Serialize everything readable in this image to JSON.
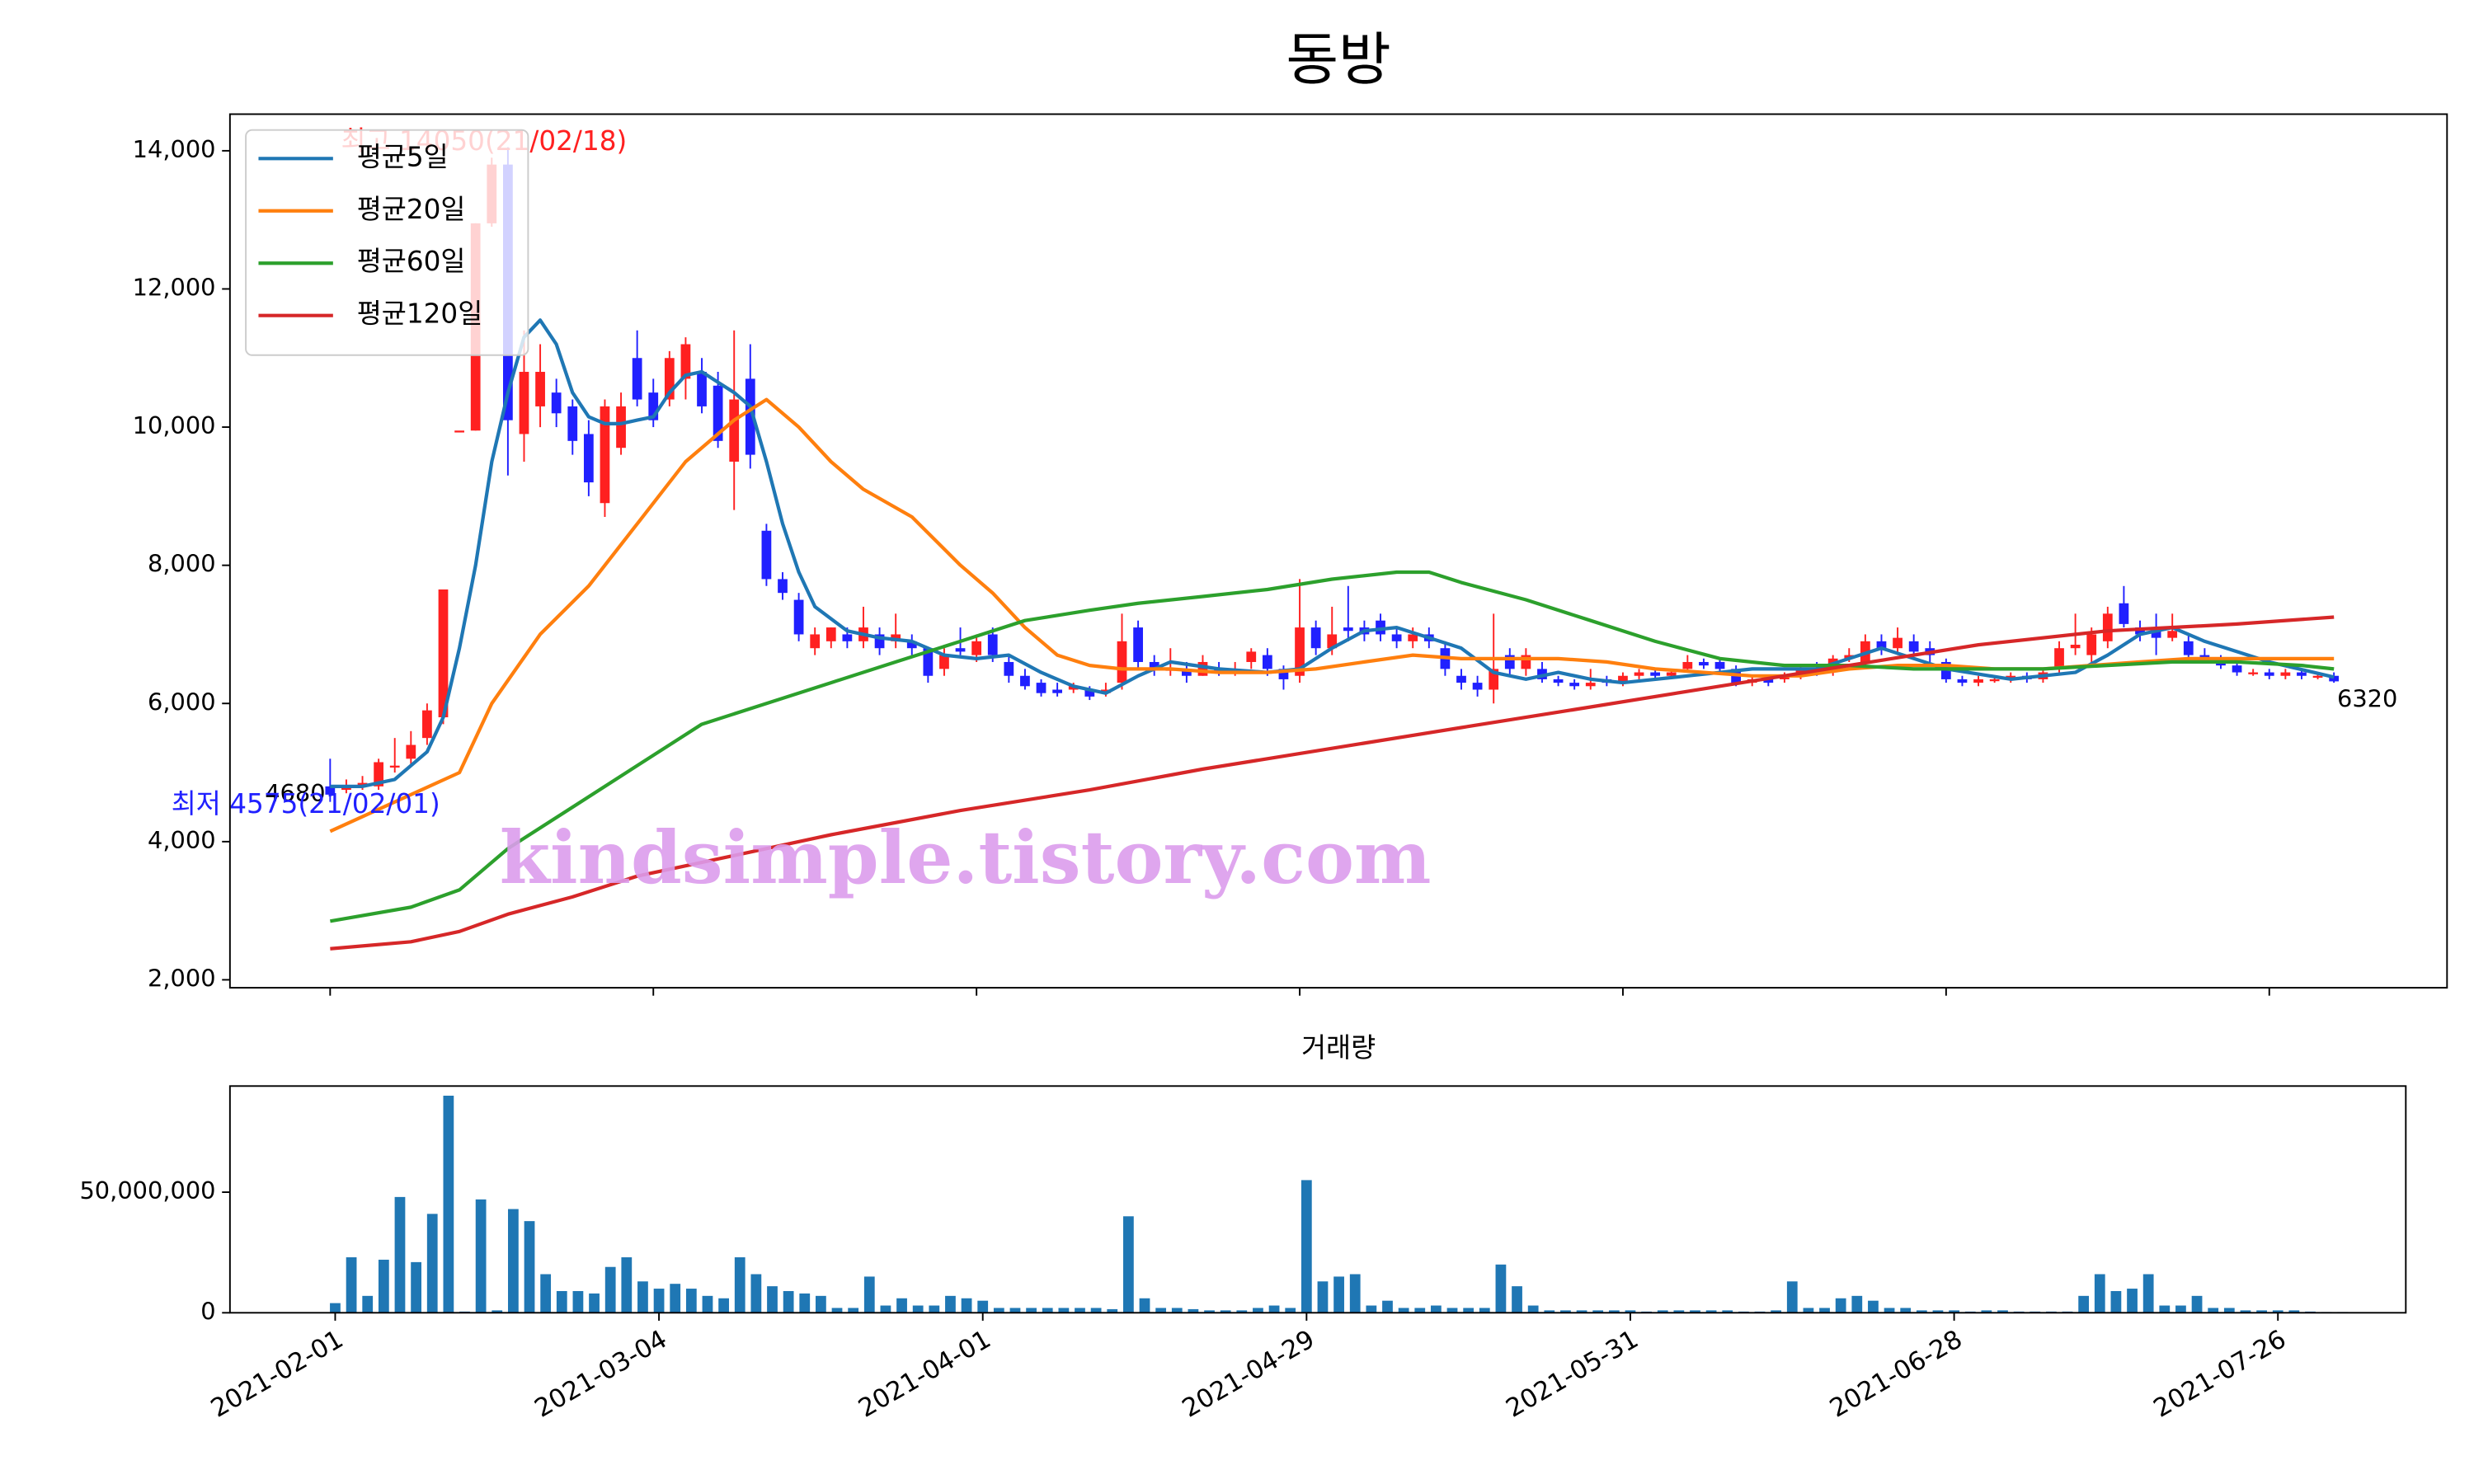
{
  "chart_data": [
    {
      "type": "candlestick",
      "title": "동방",
      "high_label": "최고 14050(21/02/18)",
      "low_label": "최저 4575(21/02/01)",
      "first_label": "4680",
      "last_label": "6320",
      "watermark": "kindsimple.tistory.com",
      "up_color": "#ff2020",
      "down_color": "#2020ff",
      "open": [
        4800,
        4750,
        4800,
        4800,
        5100,
        5200,
        5500,
        5800,
        9950,
        9950,
        12950,
        13800,
        9900,
        10300,
        10500,
        10300,
        9900,
        8900,
        9700,
        11000,
        10500,
        10400,
        10700,
        10800,
        10600,
        9500,
        10700,
        8500,
        7800,
        7500,
        6800,
        6900,
        7000,
        6900,
        7000,
        6900,
        6900,
        6800,
        6500,
        6800,
        6700,
        7000,
        6600,
        6400,
        6300,
        6200,
        6200,
        6200,
        6150,
        6300,
        7100,
        6600,
        6500,
        6500,
        6400,
        6500,
        6450,
        6600,
        6700,
        6500,
        6400,
        7100,
        6800,
        7100,
        7100,
        7200,
        7000,
        6900,
        7000,
        6800,
        6400,
        6300,
        6200,
        6700,
        6500,
        6500,
        6350,
        6300,
        6250,
        6350,
        6300,
        6400,
        6450,
        6400,
        6500,
        6600,
        6600,
        6500,
        6300,
        6350,
        6350,
        6400,
        6500,
        6450,
        6650,
        6600,
        6900,
        6800,
        6900,
        6800,
        6600,
        6350,
        6300,
        6350,
        6350,
        6400,
        6350,
        6500,
        6800,
        6700,
        6900,
        7450,
        7100,
        7050,
        6950,
        6900,
        6700,
        6650,
        6550,
        6450,
        6450,
        6400,
        6450,
        6400,
        6400
      ],
      "high": [
        5200,
        4900,
        4950,
        5200,
        5500,
        5600,
        6000,
        7650,
        9950,
        12950,
        13900,
        14050,
        11400,
        11200,
        10700,
        10400,
        10100,
        10400,
        10500,
        11400,
        10700,
        11100,
        11300,
        11000,
        10800,
        11400,
        11200,
        8600,
        7900,
        7600,
        7100,
        7100,
        7100,
        7400,
        7100,
        7300,
        7000,
        6800,
        6800,
        7100,
        7000,
        7100,
        6700,
        6500,
        6350,
        6300,
        6300,
        6250,
        6300,
        7300,
        7200,
        6700,
        6800,
        6600,
        6700,
        6600,
        6600,
        6800,
        6800,
        6550,
        7800,
        7200,
        7400,
        7700,
        7200,
        7300,
        7100,
        7100,
        7100,
        6900,
        6500,
        6400,
        7300,
        6800,
        6800,
        6600,
        6400,
        6350,
        6500,
        6400,
        6450,
        6500,
        6500,
        6500,
        6700,
        6650,
        6650,
        6550,
        6400,
        6400,
        6450,
        6550,
        6600,
        6700,
        6800,
        7000,
        7000,
        7100,
        7000,
        6900,
        6650,
        6400,
        6400,
        6400,
        6450,
        6450,
        6500,
        6900,
        7300,
        7100,
        7400,
        7700,
        7200,
        7300,
        7300,
        7000,
        6800,
        6700,
        6600,
        6500,
        6500,
        6500,
        6500,
        6450,
        6450
      ],
      "low": [
        4575,
        4700,
        4750,
        4750,
        5000,
        5100,
        5400,
        5700,
        9950,
        9950,
        12900,
        9300,
        9500,
        10000,
        10000,
        9600,
        9000,
        8700,
        9600,
        10300,
        10000,
        10300,
        10400,
        10200,
        9700,
        8800,
        9400,
        7700,
        7500,
        6900,
        6700,
        6800,
        6800,
        6800,
        6700,
        6800,
        6700,
        6300,
        6400,
        6700,
        6600,
        6600,
        6300,
        6200,
        6100,
        6100,
        6150,
        6050,
        6100,
        6200,
        6500,
        6400,
        6400,
        6300,
        6400,
        6400,
        6400,
        6500,
        6400,
        6200,
        6300,
        6700,
        6700,
        6900,
        6900,
        6900,
        6800,
        6800,
        6800,
        6400,
        6200,
        6100,
        6000,
        6400,
        6400,
        6300,
        6250,
        6200,
        6200,
        6250,
        6250,
        6350,
        6350,
        6350,
        6450,
        6500,
        6450,
        6250,
        6250,
        6250,
        6300,
        6350,
        6400,
        6400,
        6600,
        6500,
        6700,
        6700,
        6700,
        6600,
        6300,
        6250,
        6250,
        6300,
        6300,
        6300,
        6300,
        6450,
        6700,
        6600,
        6800,
        7100,
        6900,
        6700,
        6900,
        6650,
        6600,
        6500,
        6400,
        6400,
        6350,
        6350,
        6350,
        6350,
        6300
      ],
      "close": [
        4680,
        4780,
        4850,
        5150,
        5100,
        5400,
        5900,
        7650,
        9950,
        12950,
        13800,
        10100,
        10800,
        10800,
        10200,
        9800,
        9200,
        10300,
        10300,
        10400,
        10100,
        11000,
        11200,
        10300,
        9800,
        10400,
        9600,
        7800,
        7600,
        7000,
        7000,
        7100,
        6900,
        7100,
        6800,
        7000,
        6800,
        6400,
        6700,
        6750,
        6900,
        6700,
        6400,
        6250,
        6150,
        6150,
        6250,
        6100,
        6200,
        6900,
        6600,
        6500,
        6500,
        6400,
        6600,
        6450,
        6500,
        6750,
        6500,
        6350,
        7100,
        6800,
        7000,
        7050,
        7000,
        7000,
        6900,
        7000,
        6900,
        6500,
        6300,
        6200,
        6500,
        6500,
        6700,
        6350,
        6300,
        6250,
        6300,
        6300,
        6400,
        6450,
        6400,
        6450,
        6600,
        6550,
        6500,
        6300,
        6350,
        6300,
        6400,
        6500,
        6450,
        6650,
        6700,
        6900,
        6800,
        6950,
        6750,
        6700,
        6350,
        6300,
        6350,
        6350,
        6400,
        6350,
        6450,
        6800,
        6850,
        7000,
        7300,
        7150,
        7000,
        6950,
        7050,
        6700,
        6650,
        6550,
        6450,
        6450,
        6400,
        6450,
        6400,
        6400,
        6320
      ],
      "series": [
        {
          "name": "평균5일",
          "color": "#1f77b4",
          "x": [
            0,
            2,
            4,
            6,
            7,
            8,
            9,
            10,
            11,
            12,
            13,
            14,
            15,
            16,
            17,
            18,
            19,
            20,
            21,
            22,
            23,
            24,
            25,
            26,
            27,
            28,
            29,
            30,
            32,
            34,
            36,
            38,
            40,
            42,
            44,
            46,
            48,
            50,
            52,
            55,
            58,
            60,
            62,
            64,
            66,
            68,
            70,
            72,
            74,
            76,
            78,
            80,
            84,
            88,
            92,
            96,
            100,
            104,
            108,
            110,
            112,
            114,
            116,
            120,
            124
          ],
          "values": [
            4800,
            4800,
            4900,
            5300,
            5800,
            6800,
            8000,
            9500,
            10500,
            11300,
            11550,
            11200,
            10500,
            10150,
            10050,
            10050,
            10100,
            10150,
            10500,
            10750,
            10800,
            10650,
            10500,
            10300,
            9500,
            8600,
            7900,
            7400,
            7050,
            6950,
            6900,
            6700,
            6650,
            6700,
            6450,
            6250,
            6150,
            6400,
            6600,
            6500,
            6450,
            6500,
            6800,
            7050,
            7100,
            6950,
            6800,
            6450,
            6350,
            6450,
            6350,
            6300,
            6400,
            6500,
            6500,
            6800,
            6500,
            6350,
            6450,
            6700,
            7000,
            7100,
            6900,
            6600,
            6380
          ]
        },
        {
          "name": "평균20일",
          "color": "#ff7f0e",
          "x": [
            0,
            8,
            10,
            13,
            16,
            19,
            22,
            25,
            27,
            29,
            31,
            33,
            36,
            39,
            41,
            43,
            45,
            47,
            49,
            52,
            55,
            58,
            61,
            64,
            67,
            70,
            73,
            76,
            79,
            82,
            85,
            88,
            91,
            94,
            97,
            100,
            103,
            106,
            109,
            112,
            115,
            118,
            122,
            124
          ],
          "values": [
            4150,
            5000,
            6000,
            7000,
            7700,
            8600,
            9500,
            10100,
            10400,
            10000,
            9500,
            9100,
            8700,
            8000,
            7600,
            7100,
            6700,
            6550,
            6500,
            6500,
            6450,
            6450,
            6500,
            6600,
            6700,
            6650,
            6650,
            6650,
            6600,
            6500,
            6450,
            6400,
            6400,
            6500,
            6550,
            6550,
            6500,
            6500,
            6550,
            6600,
            6650,
            6650,
            6650,
            6650
          ]
        },
        {
          "name": "평균60일",
          "color": "#2ca02c",
          "x": [
            0,
            5,
            8,
            11,
            15,
            19,
            23,
            27,
            31,
            35,
            39,
            43,
            47,
            50,
            54,
            58,
            62,
            66,
            68,
            70,
            74,
            78,
            82,
            86,
            90,
            94,
            98,
            102,
            106,
            110,
            114,
            118,
            122,
            124
          ],
          "values": [
            2850,
            3050,
            3300,
            3900,
            4500,
            5100,
            5700,
            6000,
            6300,
            6600,
            6900,
            7200,
            7350,
            7450,
            7550,
            7650,
            7800,
            7900,
            7900,
            7750,
            7500,
            7200,
            6900,
            6650,
            6550,
            6550,
            6500,
            6500,
            6500,
            6550,
            6600,
            6600,
            6550,
            6500
          ]
        },
        {
          "name": "평균120일",
          "color": "#d62728",
          "x": [
            0,
            5,
            8,
            11,
            15,
            19,
            25,
            31,
            39,
            47,
            54,
            62,
            70,
            78,
            86,
            94,
            102,
            110,
            118,
            124
          ],
          "values": [
            2450,
            2550,
            2700,
            2950,
            3200,
            3500,
            3800,
            4100,
            4450,
            4750,
            5050,
            5350,
            5650,
            5950,
            6250,
            6550,
            6850,
            7050,
            7150,
            7250
          ]
        }
      ],
      "legend": "upper left",
      "xlim": [
        -6.2,
        131
      ],
      "ylim": [
        1885,
        14530
      ],
      "yticks": [
        {
          "value": 2000,
          "label": "2,000"
        },
        {
          "value": 4000,
          "label": "4,000"
        },
        {
          "value": 6000,
          "label": "6,000"
        },
        {
          "value": 8000,
          "label": "8,000"
        },
        {
          "value": 10000,
          "label": "10,000"
        },
        {
          "value": 12000,
          "label": "12,000"
        },
        {
          "value": 14000,
          "label": "14,000"
        }
      ]
    },
    {
      "type": "bar",
      "title": "거래량",
      "color": "#1f77b4",
      "values": [
        4000000.0,
        23000000.0,
        7000000.0,
        22000000.0,
        48000000.0,
        21000000.0,
        41000000.0,
        90000000.0,
        500000.0,
        47000000.0,
        1000000.0,
        43000000.0,
        38000000.0,
        16000000.0,
        9000000.0,
        9000000.0,
        8000000.0,
        19000000.0,
        23000000.0,
        13000000.0,
        10000000.0,
        12000000.0,
        10000000.0,
        7000000.0,
        6000000.0,
        23000000.0,
        16000000.0,
        11000000.0,
        9000000.0,
        8000000.0,
        7000000.0,
        2000000.0,
        2000000.0,
        15000000.0,
        3000000.0,
        6000000.0,
        3000000.0,
        3000000.0,
        7000000.0,
        6000000.0,
        5000000.0,
        2000000.0,
        2000000.0,
        2000000.0,
        2000000.0,
        2000000.0,
        2000000.0,
        2000000.0,
        1500000.0,
        40000000.0,
        6000000.0,
        2000000.0,
        2000000.0,
        1500000.0,
        1000000.0,
        1000000.0,
        1000000.0,
        2000000.0,
        3000000.0,
        2000000.0,
        55000000.0,
        13000000.0,
        15000000.0,
        16000000.0,
        3000000.0,
        5000000.0,
        2000000.0,
        2000000.0,
        3000000.0,
        2000000.0,
        2000000.0,
        2000000.0,
        20000000.0,
        11000000.0,
        3000000.0,
        1000000.0,
        1000000.0,
        1000000.0,
        1000000.0,
        1000000.0,
        1000000.0,
        500000.0,
        1000000.0,
        1000000.0,
        1000000.0,
        1000000.0,
        1000000.0,
        500000.0,
        500000.0,
        1000000.0,
        13000000.0,
        2000000.0,
        2000000.0,
        6000000.0,
        7000000.0,
        5000000.0,
        2000000.0,
        2000000.0,
        1000000.0,
        1000000.0,
        1000000.0,
        500000.0,
        1000000.0,
        1000000.0,
        500000.0,
        500000.0,
        500000.0,
        500000.0,
        7000000.0,
        16000000.0,
        9000000.0,
        10000000.0,
        16000000.0,
        3000000.0,
        3000000.0,
        7000000.0,
        2000000.0,
        2000000.0,
        1000000.0,
        1000000.0,
        1000000.0,
        1000000.0,
        500000.0,
        300000.0,
        300000.0
      ],
      "xlim": [
        -6.5,
        127.9
      ],
      "ylim": [
        0,
        94000000
      ],
      "yticks": [
        0,
        {
          "value": 50000000,
          "label": "50,000,000"
        }
      ],
      "xticks": [
        {
          "value": 0,
          "label": "2021-02-01"
        },
        {
          "value": 20,
          "label": "2021-03-04"
        },
        {
          "value": 40,
          "label": "2021-04-01"
        },
        {
          "value": 60,
          "label": "2021-04-29"
        },
        {
          "value": 80,
          "label": "2021-05-31"
        },
        {
          "value": 100,
          "label": "2021-06-28"
        },
        {
          "value": 120,
          "label": "2021-07-26"
        }
      ]
    }
  ]
}
